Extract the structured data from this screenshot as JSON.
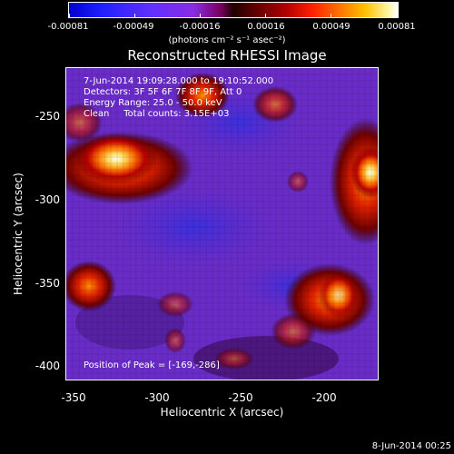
{
  "colorbar": {
    "ticks": [
      "-0.00081",
      "-0.00049",
      "-0.00016",
      "0.00016",
      "0.00049",
      "0.00081"
    ],
    "units": "(photons cm⁻² s⁻¹ asec⁻²)"
  },
  "title": "Reconstructed RHESSI Image",
  "info": {
    "line1": "7-Jun-2014 19:09:28.000 to 19:10:52.000",
    "line2": "Detectors: 3F 5F 6F 7F 8F 9F, Att 0",
    "line3": "Energy Range: 25.0 - 50.0 keV",
    "line4": "Clean     Total counts: 3.15E+03"
  },
  "peak": "Position of Peak = [-169,-286]",
  "axes": {
    "xlabel": "Heliocentric X (arcsec)",
    "ylabel": "Heliocentric Y (arcsec)",
    "xticks": [
      "-350",
      "-300",
      "-250",
      "-200"
    ],
    "yticks": [
      "-250",
      "-300",
      "-350",
      "-400"
    ]
  },
  "footer": "8-Jun-2014 00:25"
}
